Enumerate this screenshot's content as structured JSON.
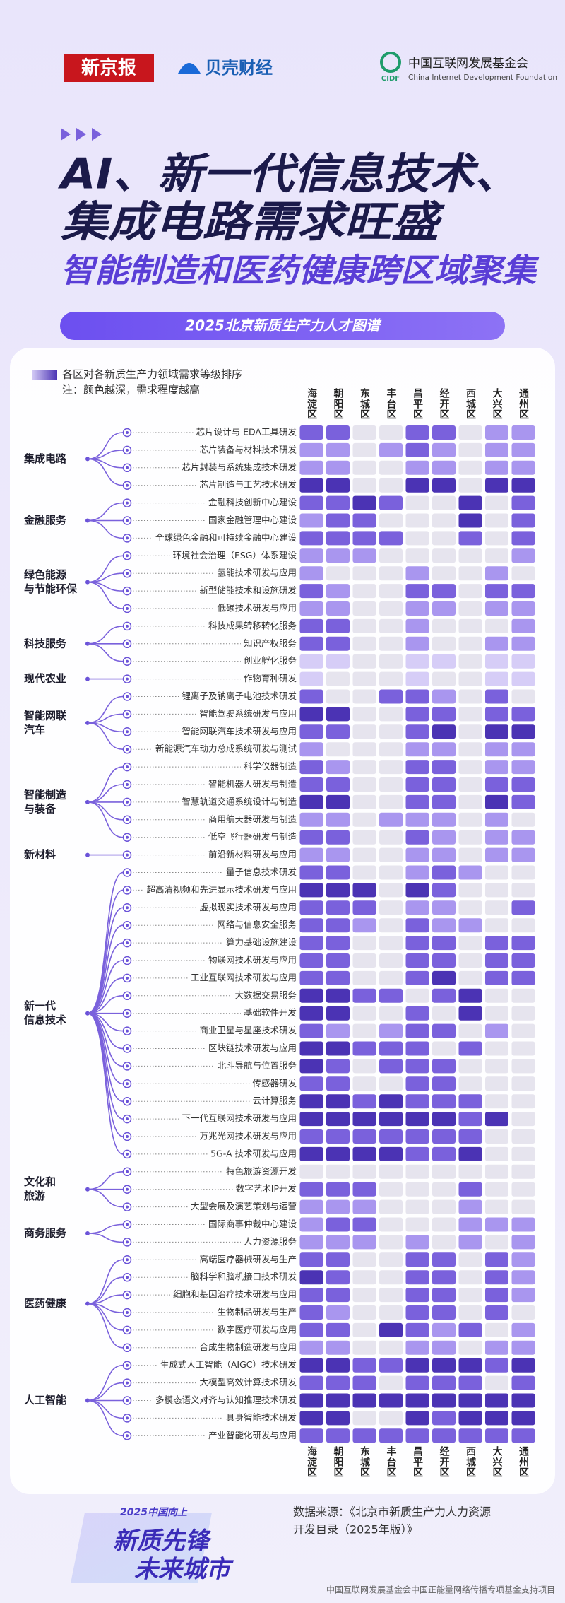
{
  "header": {
    "logos": [
      "新京报",
      "贝壳财经"
    ],
    "foundation": {
      "abbr": "CIDF",
      "name": "中国互联网发展基金会",
      "english": "China Internet Development Foundation"
    }
  },
  "title_lines": [
    "AI、新一代信息技术、",
    "集成电路需求旺盛",
    "智能制造和医药健康跨区域聚集"
  ],
  "subtitle": "2025北京新质生产力人才图谱",
  "chart_data": {
    "type": "heatmap",
    "legend": "各区对各新质生产力领域需求等级排序",
    "note": "注：颜色越深，需求程度越高",
    "columns": [
      "海淀区",
      "朝阳区",
      "东城区",
      "丰台区",
      "昌平区",
      "经开区",
      "西城区",
      "大兴区",
      "通州区"
    ],
    "level_colors": [
      "#e6e4ee",
      "#d6cdf7",
      "#a996ef",
      "#7a61dc",
      "#4b33b4"
    ],
    "groups": [
      {
        "name_lines": [
          "集成电路"
        ],
        "rows": [
          {
            "label": "芯片设计与 EDA工具研发",
            "values": [
              3,
              3,
              0,
              0,
              3,
              3,
              0,
              2,
              2
            ]
          },
          {
            "label": "芯片装备与材料技术研发",
            "values": [
              2,
              2,
              0,
              2,
              3,
              2,
              0,
              2,
              2
            ]
          },
          {
            "label": "芯片封装与系统集成技术研发",
            "values": [
              2,
              2,
              0,
              0,
              2,
              2,
              0,
              2,
              2
            ]
          },
          {
            "label": "芯片制造与工艺技术研发",
            "values": [
              4,
              4,
              0,
              0,
              4,
              4,
              0,
              4,
              4
            ]
          }
        ]
      },
      {
        "name_lines": [
          "金融服务"
        ],
        "rows": [
          {
            "label": "金融科技创新中心建设",
            "values": [
              3,
              3,
              4,
              3,
              0,
              0,
              4,
              0,
              3
            ]
          },
          {
            "label": "国家金融管理中心建设",
            "values": [
              2,
              3,
              3,
              0,
              0,
              0,
              4,
              0,
              3
            ]
          },
          {
            "label": "全球绿色金融和可持续金融中心建设",
            "values": [
              3,
              3,
              3,
              3,
              0,
              0,
              3,
              0,
              3
            ]
          }
        ]
      },
      {
        "name_lines": [
          "绿色能源",
          "与节能环保"
        ],
        "rows": [
          {
            "label": "环境社会治理（ESG）体系建设",
            "values": [
              2,
              2,
              2,
              0,
              0,
              0,
              0,
              0,
              2
            ]
          },
          {
            "label": "氢能技术研发与应用",
            "values": [
              2,
              0,
              0,
              0,
              2,
              0,
              0,
              2,
              0
            ]
          },
          {
            "label": "新型储能技术和设施研发",
            "values": [
              3,
              2,
              0,
              0,
              3,
              3,
              0,
              3,
              3
            ]
          },
          {
            "label": "低碳技术研发与应用",
            "values": [
              2,
              2,
              0,
              0,
              2,
              2,
              0,
              2,
              2
            ]
          }
        ]
      },
      {
        "name_lines": [
          "科技服务"
        ],
        "rows": [
          {
            "label": "科技成果转移转化服务",
            "values": [
              3,
              3,
              0,
              0,
              2,
              0,
              0,
              0,
              2
            ]
          },
          {
            "label": "知识产权服务",
            "values": [
              3,
              3,
              0,
              0,
              2,
              0,
              0,
              2,
              2
            ]
          },
          {
            "label": "创业孵化服务",
            "values": [
              1,
              1,
              0,
              0,
              1,
              1,
              0,
              1,
              1
            ]
          }
        ]
      },
      {
        "name_lines": [
          "现代农业"
        ],
        "rows": [
          {
            "label": "作物育种研发",
            "values": [
              1,
              0,
              0,
              0,
              1,
              0,
              0,
              1,
              1
            ]
          }
        ]
      },
      {
        "name_lines": [
          "智能网联",
          "汽车"
        ],
        "rows": [
          {
            "label": "锂离子及钠离子电池技术研发",
            "values": [
              3,
              0,
              0,
              3,
              3,
              2,
              0,
              3,
              0
            ]
          },
          {
            "label": "智能驾驶系统研发与应用",
            "values": [
              4,
              4,
              0,
              0,
              3,
              3,
              0,
              3,
              3
            ]
          },
          {
            "label": "智能网联汽车技术研发与应用",
            "values": [
              3,
              3,
              0,
              0,
              3,
              4,
              0,
              4,
              4
            ]
          },
          {
            "label": "新能源汽车动力总成系统研发与测试",
            "values": [
              2,
              0,
              0,
              0,
              2,
              2,
              0,
              2,
              2
            ]
          }
        ]
      },
      {
        "name_lines": [
          "智能制造",
          "与装备"
        ],
        "rows": [
          {
            "label": "科学仪器制造",
            "values": [
              3,
              2,
              0,
              0,
              3,
              3,
              0,
              2,
              2
            ]
          },
          {
            "label": "智能机器人研发与制造",
            "values": [
              3,
              3,
              0,
              0,
              3,
              3,
              0,
              3,
              3
            ]
          },
          {
            "label": "智慧轨道交通系统设计与制造",
            "values": [
              4,
              4,
              0,
              0,
              3,
              3,
              0,
              4,
              3
            ]
          },
          {
            "label": "商用航天器研发与制造",
            "values": [
              2,
              2,
              0,
              2,
              2,
              2,
              0,
              2,
              0
            ]
          },
          {
            "label": "低空飞行器研发与制造",
            "values": [
              3,
              3,
              0,
              0,
              3,
              2,
              0,
              2,
              2
            ]
          }
        ]
      },
      {
        "name_lines": [
          "新材料"
        ],
        "rows": [
          {
            "label": "前沿新材料研发与应用",
            "values": [
              2,
              2,
              0,
              0,
              2,
              2,
              0,
              2,
              2
            ]
          }
        ]
      },
      {
        "name_lines": [
          "新一代",
          "信息技术"
        ],
        "rows": [
          {
            "label": "量子信息技术研发",
            "values": [
              3,
              3,
              0,
              0,
              2,
              3,
              2,
              0,
              0
            ]
          },
          {
            "label": "超高清视频和先进显示技术研发与应用",
            "values": [
              4,
              4,
              4,
              0,
              4,
              3,
              0,
              0,
              0
            ]
          },
          {
            "label": "虚拟现实技术研发与应用",
            "values": [
              3,
              3,
              3,
              0,
              2,
              2,
              0,
              0,
              3
            ]
          },
          {
            "label": "网络与信息安全服务",
            "values": [
              3,
              3,
              2,
              0,
              3,
              2,
              2,
              0,
              0
            ]
          },
          {
            "label": "算力基础设施建设",
            "values": [
              3,
              3,
              0,
              0,
              3,
              3,
              0,
              3,
              3
            ]
          },
          {
            "label": "物联网技术研发与应用",
            "values": [
              3,
              3,
              0,
              0,
              3,
              3,
              0,
              3,
              3
            ]
          },
          {
            "label": "工业互联网技术研发与应用",
            "values": [
              3,
              3,
              0,
              0,
              3,
              4,
              0,
              3,
              3
            ]
          },
          {
            "label": "大数据交易服务",
            "values": [
              4,
              4,
              3,
              3,
              0,
              3,
              4,
              0,
              0
            ]
          },
          {
            "label": "基础软件开发",
            "values": [
              4,
              4,
              0,
              0,
              3,
              0,
              4,
              0,
              0
            ]
          },
          {
            "label": "商业卫星与星座技术研发",
            "values": [
              3,
              2,
              0,
              2,
              3,
              3,
              0,
              2,
              0
            ]
          },
          {
            "label": "区块链技术研发与应用",
            "values": [
              4,
              4,
              3,
              3,
              3,
              0,
              3,
              0,
              0
            ]
          },
          {
            "label": "北斗导航与位置服务",
            "values": [
              4,
              3,
              0,
              3,
              3,
              3,
              0,
              0,
              0
            ]
          },
          {
            "label": "传感器研发",
            "values": [
              3,
              3,
              0,
              0,
              3,
              3,
              0,
              0,
              0
            ]
          },
          {
            "label": "云计算服务",
            "values": [
              4,
              4,
              3,
              4,
              3,
              3,
              3,
              0,
              0
            ]
          },
          {
            "label": "下一代互联网技术研发与应用",
            "values": [
              4,
              4,
              4,
              4,
              4,
              4,
              3,
              4,
              0
            ]
          },
          {
            "label": "万兆光网技术研发与应用",
            "values": [
              3,
              3,
              3,
              3,
              3,
              3,
              3,
              0,
              0
            ]
          },
          {
            "label": "5G-A 技术研发与应用",
            "values": [
              4,
              4,
              4,
              4,
              3,
              3,
              4,
              0,
              0
            ]
          }
        ]
      },
      {
        "name_lines": [
          "文化和",
          "旅游"
        ],
        "rows": [
          {
            "label": "特色旅游资源开发",
            "values": [
              0,
              0,
              0,
              0,
              0,
              0,
              0,
              0,
              0
            ]
          },
          {
            "label": "数字艺术IP开发",
            "values": [
              3,
              3,
              3,
              0,
              0,
              0,
              3,
              0,
              0
            ]
          },
          {
            "label": "大型会展及演艺策划与运营",
            "values": [
              2,
              2,
              2,
              0,
              0,
              0,
              2,
              0,
              0
            ]
          }
        ]
      },
      {
        "name_lines": [
          "商务服务"
        ],
        "rows": [
          {
            "label": "国际商事仲裁中心建设",
            "values": [
              2,
              3,
              3,
              0,
              0,
              0,
              2,
              2,
              2
            ]
          },
          {
            "label": "人力资源服务",
            "values": [
              2,
              2,
              2,
              0,
              2,
              0,
              2,
              0,
              2
            ]
          }
        ]
      },
      {
        "name_lines": [
          "医药健康"
        ],
        "rows": [
          {
            "label": "高端医疗器械研发与生产",
            "values": [
              3,
              3,
              0,
              0,
              3,
              3,
              0,
              3,
              2
            ]
          },
          {
            "label": "脑科学和脑机接口技术研发",
            "values": [
              4,
              3,
              0,
              0,
              3,
              3,
              0,
              3,
              2
            ]
          },
          {
            "label": "细胞和基因治疗技术研发与应用",
            "values": [
              3,
              3,
              0,
              0,
              3,
              3,
              0,
              3,
              2
            ]
          },
          {
            "label": "生物制品研发与生产",
            "values": [
              3,
              2,
              0,
              0,
              3,
              3,
              0,
              3,
              0
            ]
          },
          {
            "label": "数字医疗研发与应用",
            "values": [
              3,
              3,
              0,
              4,
              3,
              2,
              3,
              0,
              2
            ]
          },
          {
            "label": "合成生物制造研发与应用",
            "values": [
              2,
              2,
              0,
              0,
              2,
              2,
              0,
              2,
              2
            ]
          }
        ]
      },
      {
        "name_lines": [
          "人工智能"
        ],
        "rows": [
          {
            "label": "生成式人工智能（AIGC）技术研发",
            "values": [
              4,
              4,
              3,
              3,
              4,
              4,
              4,
              3,
              4
            ]
          },
          {
            "label": "大模型高效计算技术研发",
            "values": [
              3,
              3,
              3,
              0,
              3,
              3,
              3,
              0,
              3
            ]
          },
          {
            "label": "多模态语义对齐与认知推理技术研发",
            "values": [
              4,
              4,
              4,
              4,
              4,
              4,
              4,
              4,
              4
            ]
          },
          {
            "label": "具身智能技术研发",
            "values": [
              4,
              4,
              0,
              0,
              4,
              3,
              4,
              4,
              4
            ]
          },
          {
            "label": "产业智能化研发与应用",
            "values": [
              3,
              3,
              3,
              3,
              3,
              3,
              3,
              3,
              3
            ]
          }
        ]
      }
    ]
  },
  "source_lines": [
    "数据来源：《北京市新质生产力人力资源",
    "开发目录（2025年版）》"
  ],
  "campaign": {
    "tag": "2025中国向上",
    "lines": [
      "新质先锋",
      "未来城市"
    ]
  },
  "footer": "中国互联网发展基金会中国正能量网络传播专项基金支持项目"
}
